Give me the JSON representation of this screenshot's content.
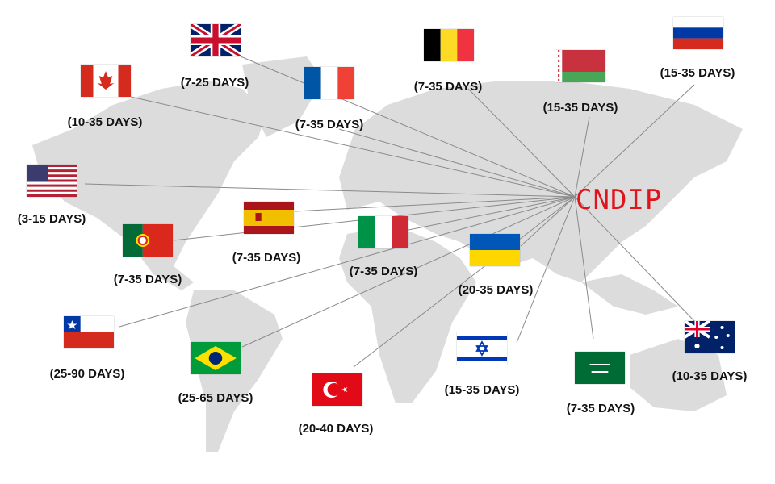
{
  "hub": {
    "label": "CNDIP",
    "color": "#e0141b"
  },
  "destinations": [
    {
      "country": "uk",
      "icon": "uk-flag-icon",
      "days": "(7-25 DAYS)"
    },
    {
      "country": "canada",
      "icon": "canada-flag-icon",
      "days": "(10-35 DAYS)"
    },
    {
      "country": "france",
      "icon": "france-flag-icon",
      "days": "(7-35 DAYS)"
    },
    {
      "country": "belgium",
      "icon": "belgium-flag-icon",
      "days": "(7-35 DAYS)"
    },
    {
      "country": "belarus",
      "icon": "belarus-flag-icon",
      "days": "(15-35 DAYS)"
    },
    {
      "country": "russia",
      "icon": "russia-flag-icon",
      "days": "(15-35 DAYS)"
    },
    {
      "country": "usa",
      "icon": "usa-flag-icon",
      "days": "(3-15 DAYS)"
    },
    {
      "country": "spain",
      "icon": "spain-flag-icon",
      "days": "(7-35 DAYS)"
    },
    {
      "country": "portugal",
      "icon": "portugal-flag-icon",
      "days": "(7-35 DAYS)"
    },
    {
      "country": "italy",
      "icon": "italy-flag-icon",
      "days": "(7-35 DAYS)"
    },
    {
      "country": "ukraine",
      "icon": "ukraine-flag-icon",
      "days": "(20-35 DAYS)"
    },
    {
      "country": "chile",
      "icon": "chile-flag-icon",
      "days": "(25-90 DAYS)"
    },
    {
      "country": "brazil",
      "icon": "brazil-flag-icon",
      "days": "(25-65 DAYS)"
    },
    {
      "country": "turkey",
      "icon": "turkey-flag-icon",
      "days": "(20-40 DAYS)"
    },
    {
      "country": "israel",
      "icon": "israel-flag-icon",
      "days": "(15-35 DAYS)"
    },
    {
      "country": "saudi-arabia",
      "icon": "saudi-arabia-flag-icon",
      "days": "(7-35 DAYS)"
    },
    {
      "country": "australia",
      "icon": "australia-flag-icon",
      "days": "(10-35 DAYS)"
    }
  ]
}
